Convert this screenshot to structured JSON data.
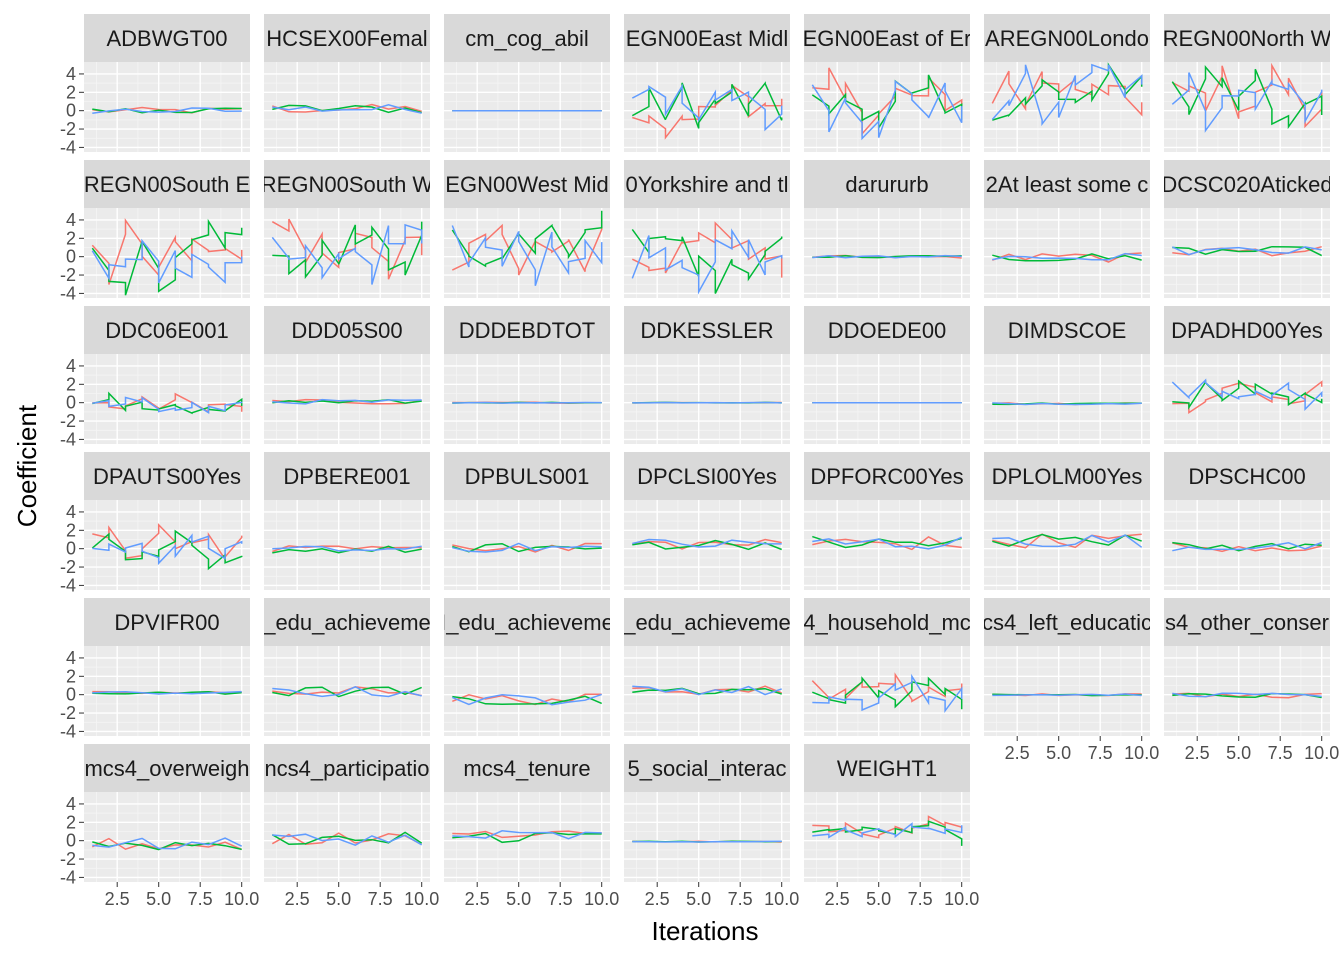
{
  "chart_data": {
    "type": "line",
    "xlabel": "Iterations",
    "ylabel": "Coefficient",
    "xlim": [
      0.5,
      10.5
    ],
    "ylim": [
      -4.5,
      5.3
    ],
    "x_ticks": [
      2.5,
      5.0,
      7.5,
      10.0
    ],
    "x_tick_labels": [
      "2.5",
      "5.0",
      "7.5",
      "10.0"
    ],
    "y_ticks": [
      4,
      2,
      0,
      -2,
      -4
    ],
    "y_tick_labels": [
      "4",
      "2",
      "0",
      "-2",
      "-4"
    ],
    "x": [
      1,
      2,
      3,
      4,
      5,
      6,
      7,
      8,
      9,
      10
    ],
    "grid": true,
    "legend": "none",
    "series_colors": [
      "#F8766D",
      "#00BA38",
      "#619CFF"
    ],
    "panels": [
      {
        "label": "ADBWGT00",
        "center": 0.0,
        "spread": 0.35
      },
      {
        "label": "HCSEX00Femal",
        "center": 0.2,
        "spread": 0.5
      },
      {
        "label": "cm_cog_abil",
        "center": 0.0,
        "spread": 0.0
      },
      {
        "label": "EGN00East Midl",
        "center": 0.5,
        "spread": 2.5
      },
      {
        "label": "EGN00East of Er",
        "center": 0.8,
        "spread": 2.6
      },
      {
        "label": "AREGN00Londo",
        "center": 1.6,
        "spread": 2.8
      },
      {
        "label": "REGN00North W",
        "center": 1.6,
        "spread": 2.6
      },
      {
        "label": "REGN00South E",
        "center": -0.3,
        "spread": 2.8
      },
      {
        "label": "REGN00South W",
        "center": 1.3,
        "spread": 2.6
      },
      {
        "label": "EGN00West Mid",
        "center": 0.9,
        "spread": 2.7
      },
      {
        "label": "0Yorkshire and tl",
        "center": 0.4,
        "spread": 2.8
      },
      {
        "label": "darururb",
        "center": 0.0,
        "spread": 0.15
      },
      {
        "label": "2At least some c",
        "center": -0.1,
        "spread": 0.5
      },
      {
        "label": "DCSC020Aticked",
        "center": 0.6,
        "spread": 0.5
      },
      {
        "label": "DDC06E001",
        "center": -0.4,
        "spread": 0.9
      },
      {
        "label": "DDD05S00",
        "center": 0.1,
        "spread": 0.25
      },
      {
        "label": "DDDEBDTOT",
        "center": 0.0,
        "spread": 0.05
      },
      {
        "label": "DDKESSLER",
        "center": 0.0,
        "spread": 0.03
      },
      {
        "label": "DDOEDE00",
        "center": 0.0,
        "spread": 0.0
      },
      {
        "label": "DIMDSCOE",
        "center": -0.1,
        "spread": 0.1
      },
      {
        "label": "DPADHD00Yes",
        "center": 1.2,
        "spread": 1.3
      },
      {
        "label": "DPAUTS00Yes",
        "center": 0.3,
        "spread": 1.5
      },
      {
        "label": "DPBERE001",
        "center": -0.1,
        "spread": 0.4
      },
      {
        "label": "DPBULS001",
        "center": 0.1,
        "spread": 0.5
      },
      {
        "label": "DPCLSI00Yes",
        "center": 0.5,
        "spread": 0.6
      },
      {
        "label": "DPFORC00Yes",
        "center": 0.6,
        "spread": 0.8
      },
      {
        "label": "DPLOLM00Yes",
        "center": 0.9,
        "spread": 0.8
      },
      {
        "label": "DPSCHC00",
        "center": 0.2,
        "spread": 0.5
      },
      {
        "label": "DPVIFR00",
        "center": 0.2,
        "spread": 0.15
      },
      {
        "label": "_edu_achieveme",
        "center": 0.3,
        "spread": 0.6
      },
      {
        "label": "I_edu_achieveme",
        "center": -0.5,
        "spread": 0.6
      },
      {
        "label": "_edu_achieveme",
        "center": 0.5,
        "spread": 0.5
      },
      {
        "label": "4_household_mc",
        "center": 0.3,
        "spread": 1.3
      },
      {
        "label": "cs4_left_educatic",
        "center": 0.0,
        "spread": 0.1
      },
      {
        "label": "s4_other_conser",
        "center": -0.1,
        "spread": 0.25
      },
      {
        "label": "mcs4_overweigh",
        "center": -0.4,
        "spread": 0.7
      },
      {
        "label": "ncs4_participatio",
        "center": 0.2,
        "spread": 0.7
      },
      {
        "label": "mcs4_tenure",
        "center": 0.5,
        "spread": 0.7
      },
      {
        "label": "5_social_interac",
        "center": -0.1,
        "spread": 0.05
      },
      {
        "label": "WEIGHT1",
        "center": 1.1,
        "spread": 0.9
      }
    ]
  }
}
